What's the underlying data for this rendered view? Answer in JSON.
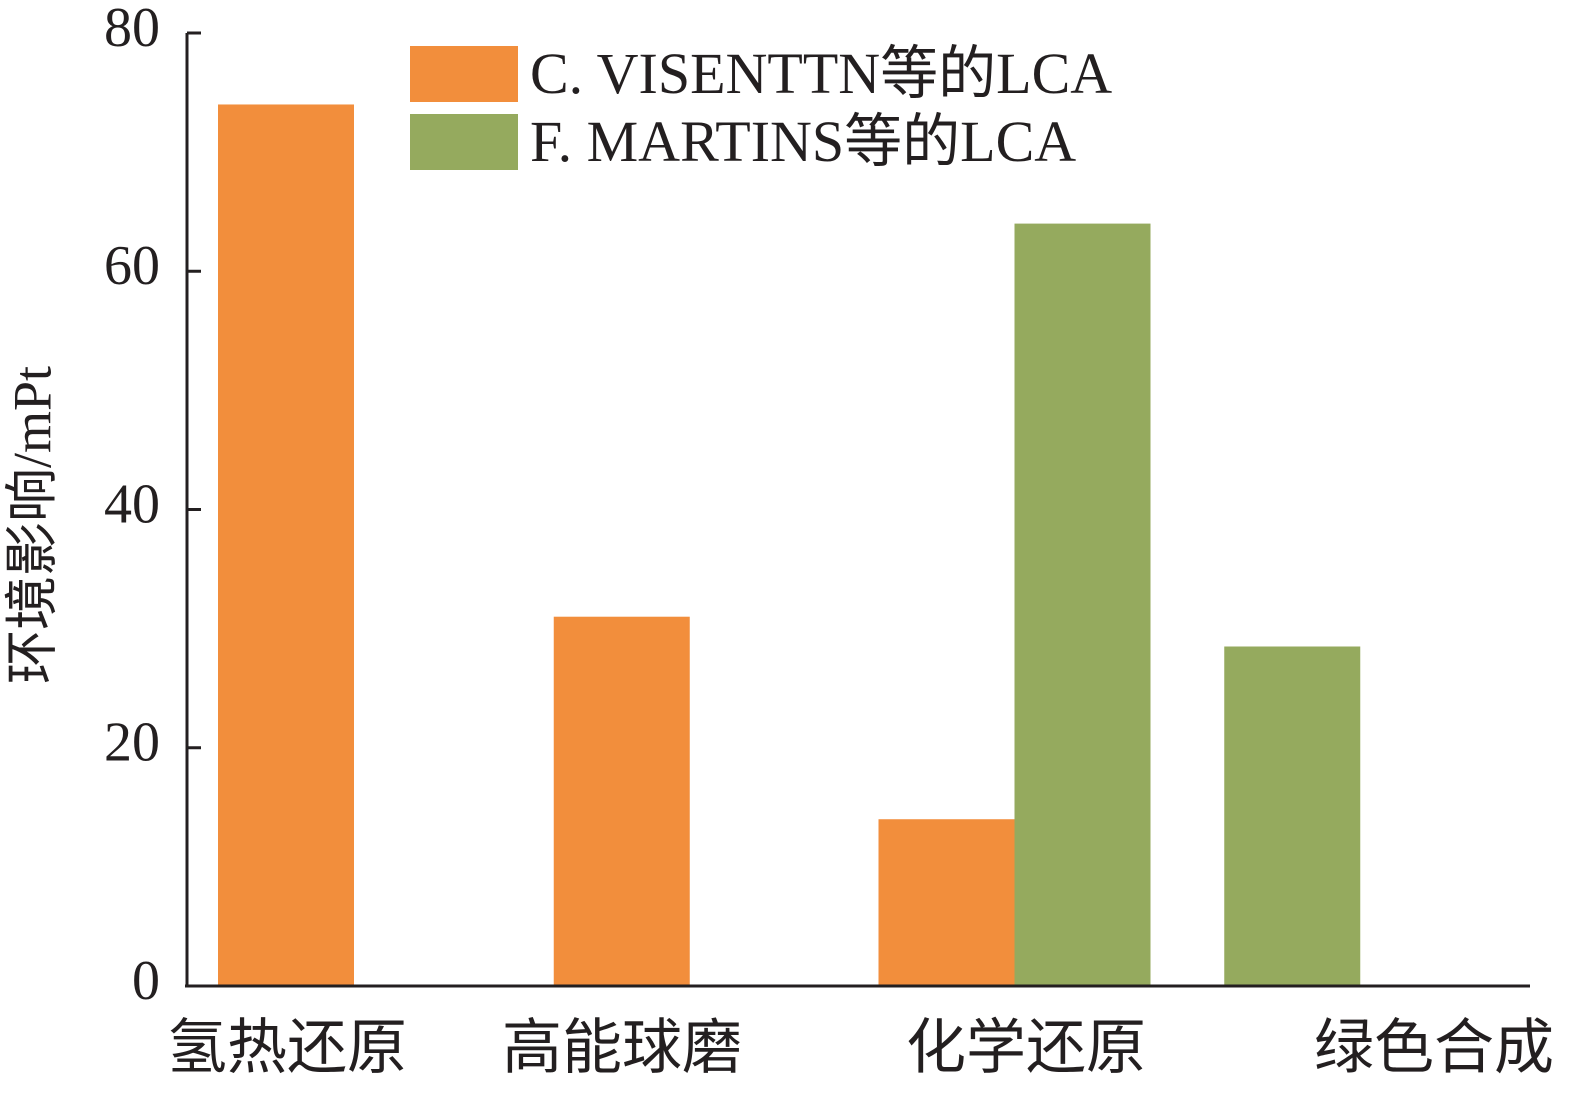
{
  "chart_data": {
    "type": "bar",
    "title": "",
    "xlabel": "",
    "ylabel": "环境影响/mPt",
    "ylim": [
      0,
      80
    ],
    "yticks": [
      0,
      20,
      40,
      60,
      80
    ],
    "categories": [
      "氢热还原",
      "高能球磨",
      "化学还原",
      "绿色合成"
    ],
    "series": [
      {
        "name": "C. VISENTTN等的LCA",
        "color": "#f28e3c",
        "values": [
          74,
          31,
          14,
          null
        ]
      },
      {
        "name": "F. MARTINS等的LCA",
        "color": "#95aa5e",
        "values": [
          null,
          null,
          64,
          28.5
        ]
      }
    ],
    "grid": false,
    "legend_position": "top-center"
  }
}
